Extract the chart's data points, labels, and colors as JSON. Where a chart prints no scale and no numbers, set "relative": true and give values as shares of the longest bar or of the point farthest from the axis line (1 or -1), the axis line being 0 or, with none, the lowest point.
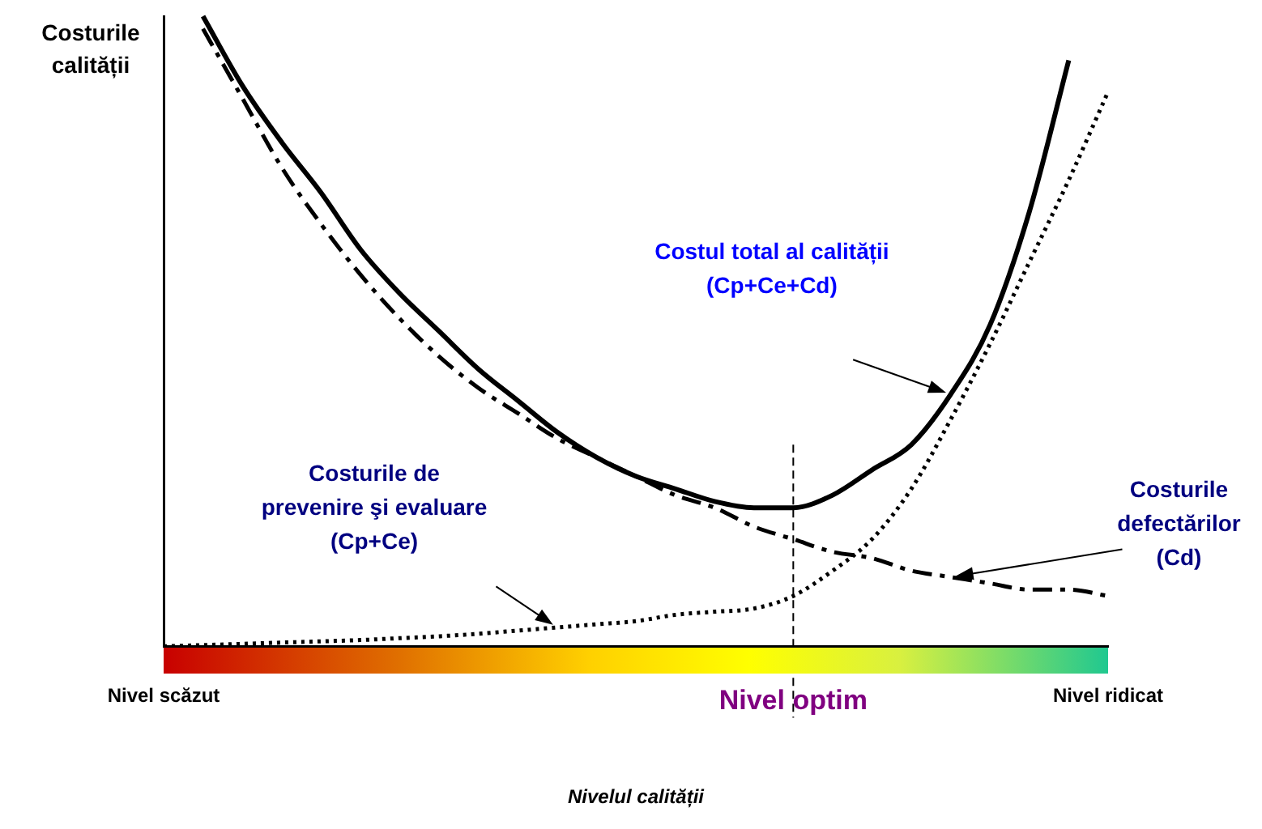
{
  "chart_data": {
    "type": "line",
    "relative": true,
    "ylabel": "Costurile calității",
    "xlabel": "Nivelul calității",
    "categories": [
      "Nivel scăzut",
      null,
      null,
      null,
      null,
      null,
      null,
      null,
      null,
      null,
      null,
      null,
      null,
      null,
      null,
      null,
      "Nivel optim",
      null,
      null,
      null,
      null,
      null,
      null,
      null,
      "Nivel ridicat"
    ],
    "series": [
      {
        "color": "#000000",
        "line_style": "solid",
        "values": [
          null,
          1.0,
          0.89,
          0.8,
          0.72,
          0.63,
          0.56,
          0.5,
          0.44,
          0.39,
          0.34,
          0.3,
          0.27,
          0.25,
          0.23,
          0.22,
          0.22,
          0.24,
          0.28,
          0.32,
          0.4,
          0.51,
          0.69,
          0.93,
          null
        ]
      },
      {
        "color": "#000000",
        "line_style": "dashed",
        "values": [
          null,
          0.98,
          0.87,
          0.76,
          0.67,
          0.59,
          0.52,
          0.46,
          0.41,
          0.37,
          0.33,
          0.3,
          0.27,
          0.24,
          0.22,
          0.19,
          0.17,
          0.15,
          0.14,
          0.12,
          0.11,
          0.1,
          0.09,
          0.09,
          0.08
        ]
      },
      {
        "color": "#000000",
        "line_style": "dotted",
        "values": [
          0,
          0.002,
          0.004,
          0.006,
          0.008,
          0.01,
          0.013,
          0.016,
          0.02,
          0.025,
          0.03,
          0.035,
          0.04,
          0.05,
          0.055,
          0.06,
          0.08,
          0.12,
          0.17,
          0.25,
          0.36,
          0.48,
          0.61,
          0.74,
          0.88
        ]
      }
    ],
    "annotations": [
      "Costul total al calității\n(Cp+Ce+Cd)",
      "Costurile de\nprevenire şi evaluare\n(Cp+Ce)",
      "Costurile\ndefectărilor\n(Cd)"
    ],
    "ref_lines": [
      {
        "axis": "x",
        "value": "Nivel optim",
        "line_style": "dashed",
        "color": "#000000"
      }
    ],
    "marker": "none",
    "grid": false,
    "legend": false
  }
}
